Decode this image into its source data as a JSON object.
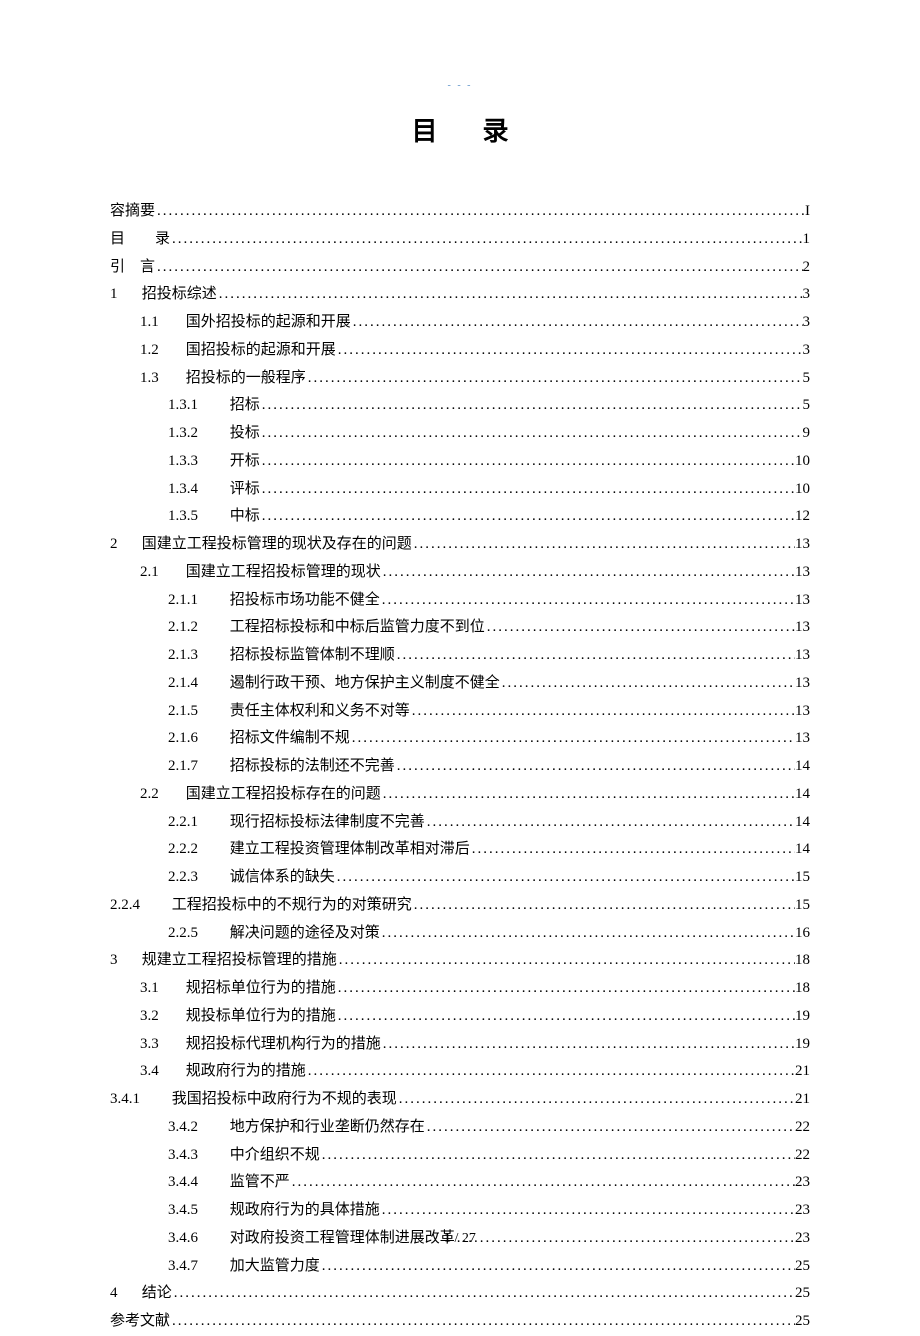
{
  "header_mark": "- - -",
  "title": "目录",
  "footer": "1 / 27",
  "entries": [
    {
      "indent": 0,
      "num": "",
      "label": "容摘要",
      "page": "I",
      "numClass": ""
    },
    {
      "indent": 0,
      "num": "",
      "label": "目　　录",
      "page": "1",
      "numClass": ""
    },
    {
      "indent": 0,
      "num": "",
      "label": "引　言",
      "page": "2",
      "numClass": ""
    },
    {
      "indent": 0,
      "num": "1",
      "label": "招投标综述",
      "page": "3",
      "numClass": "num-l1"
    },
    {
      "indent": 1,
      "num": "1.1",
      "label": "国外招投标的起源和开展",
      "page": "3",
      "numClass": "num-l2"
    },
    {
      "indent": 1,
      "num": "1.2",
      "label": "国招投标的起源和开展",
      "page": "3",
      "numClass": "num-l2"
    },
    {
      "indent": 1,
      "num": "1.3",
      "label": "招投标的一般程序",
      "page": "5",
      "numClass": "num-l2"
    },
    {
      "indent": 2,
      "num": "1.3.1",
      "label": "招标",
      "page": "5",
      "numClass": "num-l3"
    },
    {
      "indent": 2,
      "num": "1.3.2",
      "label": "投标",
      "page": "9",
      "numClass": "num-l3"
    },
    {
      "indent": 2,
      "num": "1.3.3",
      "label": "开标",
      "page": "10",
      "numClass": "num-l3"
    },
    {
      "indent": 2,
      "num": "1.3.4",
      "label": "评标",
      "page": "10",
      "numClass": "num-l3"
    },
    {
      "indent": 2,
      "num": "1.3.5",
      "label": "中标",
      "page": "12",
      "numClass": "num-l3"
    },
    {
      "indent": 0,
      "num": "2",
      "label": "国建立工程投标管理的现状及存在的问题",
      "page": "13",
      "numClass": "num-l1"
    },
    {
      "indent": 1,
      "num": "2.1",
      "label": "国建立工程招投标管理的现状",
      "page": "13",
      "numClass": "num-l2"
    },
    {
      "indent": 2,
      "num": "2.1.1",
      "label": "招投标市场功能不健全",
      "page": "13",
      "numClass": "num-l3"
    },
    {
      "indent": 2,
      "num": "2.1.2",
      "label": "工程招标投标和中标后监管力度不到位",
      "page": "13",
      "numClass": "num-l3"
    },
    {
      "indent": 2,
      "num": "2.1.3",
      "label": "招标投标监管体制不理顺",
      "page": "13",
      "numClass": "num-l3"
    },
    {
      "indent": 2,
      "num": "2.1.4",
      "label": "遏制行政干预、地方保护主义制度不健全",
      "page": "13",
      "numClass": "num-l3"
    },
    {
      "indent": 2,
      "num": "2.1.5",
      "label": "责任主体权利和义务不对等",
      "page": "13",
      "numClass": "num-l3"
    },
    {
      "indent": 2,
      "num": "2.1.6",
      "label": "招标文件编制不规",
      "page": "13",
      "numClass": "num-l3"
    },
    {
      "indent": 2,
      "num": "2.1.7",
      "label": "招标投标的法制还不完善",
      "page": "14",
      "numClass": "num-l3"
    },
    {
      "indent": 1,
      "num": "2.2",
      "label": "国建立工程招投标存在的问题",
      "page": "14",
      "numClass": "num-l2"
    },
    {
      "indent": 2,
      "num": "2.2.1",
      "label": "现行招标投标法律制度不完善",
      "page": "14",
      "numClass": "num-l3"
    },
    {
      "indent": 2,
      "num": "2.2.2",
      "label": "建立工程投资管理体制改革相对滞后",
      "page": "14",
      "numClass": "num-l3"
    },
    {
      "indent": 2,
      "num": "2.2.3",
      "label": "诚信体系的缺失",
      "page": "15",
      "numClass": "num-l3"
    },
    {
      "indent": 0,
      "num": "2.2.4",
      "label": "工程招投标中的不规行为的对策研究",
      "page": "15",
      "numClass": "num-l3"
    },
    {
      "indent": 2,
      "num": "2.2.5",
      "label": "解决问题的途径及对策",
      "page": "16",
      "numClass": "num-l3"
    },
    {
      "indent": 0,
      "num": "3",
      "label": "规建立工程招投标管理的措施",
      "page": "18",
      "numClass": "num-l1"
    },
    {
      "indent": 1,
      "num": "3.1",
      "label": "规招标单位行为的措施",
      "page": "18",
      "numClass": "num-l2"
    },
    {
      "indent": 1,
      "num": "3.2",
      "label": "规投标单位行为的措施",
      "page": "19",
      "numClass": "num-l2"
    },
    {
      "indent": 1,
      "num": "3.3",
      "label": "规招投标代理机构行为的措施",
      "page": "19",
      "numClass": "num-l2"
    },
    {
      "indent": 1,
      "num": "3.4",
      "label": "规政府行为的措施",
      "page": "21",
      "numClass": "num-l2"
    },
    {
      "indent": 0,
      "num": "3.4.1",
      "label": "我国招投标中政府行为不规的表现",
      "page": "21",
      "numClass": "num-l3"
    },
    {
      "indent": 2,
      "num": "3.4.2",
      "label": "地方保护和行业垄断仍然存在",
      "page": "22",
      "numClass": "num-l3"
    },
    {
      "indent": 2,
      "num": "3.4.3",
      "label": "中介组织不规",
      "page": "22",
      "numClass": "num-l3"
    },
    {
      "indent": 2,
      "num": "3.4.4",
      "label": "监管不严",
      "page": "23",
      "numClass": "num-l3"
    },
    {
      "indent": 2,
      "num": "3.4.5",
      "label": "规政府行为的具体措施",
      "page": "23",
      "numClass": "num-l3"
    },
    {
      "indent": 2,
      "num": "3.4.6",
      "label": "对政府投资工程管理体制进展改革",
      "page": "23",
      "numClass": "num-l3"
    },
    {
      "indent": 2,
      "num": "3.4.7",
      "label": "加大监管力度",
      "page": "25",
      "numClass": "num-l3"
    },
    {
      "indent": 0,
      "num": "4",
      "label": "结论",
      "page": "25",
      "numClass": "num-l1"
    },
    {
      "indent": 0,
      "num": "",
      "label": "参考文献",
      "page": "25",
      "numClass": ""
    }
  ]
}
